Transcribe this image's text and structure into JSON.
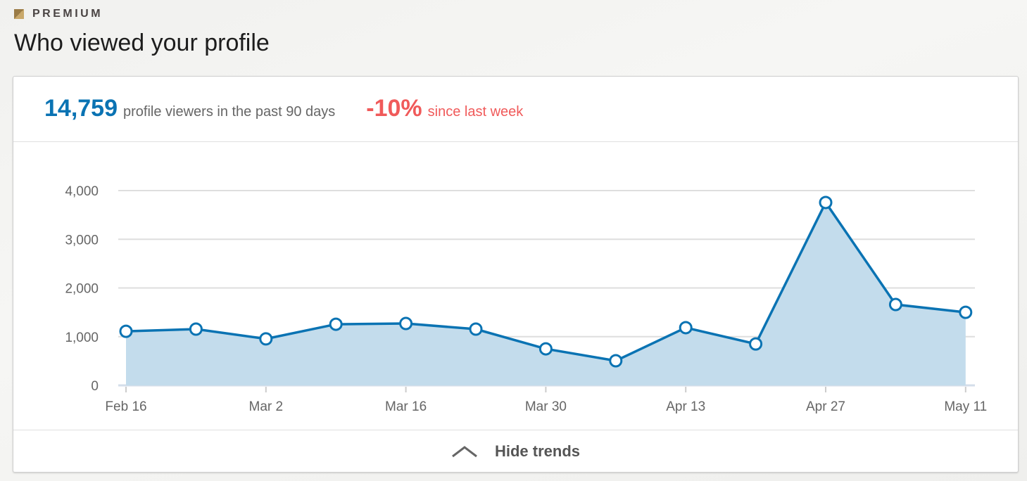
{
  "header": {
    "badge": "PREMIUM",
    "title": "Who viewed your profile"
  },
  "summary": {
    "count": "14,759",
    "count_label": "profile viewers in the past 90 days",
    "change": "-10%",
    "change_label": "since last week"
  },
  "footer": {
    "toggle_label": "Hide trends"
  },
  "colors": {
    "line": "#0a73b3",
    "fill": "#c3dcec",
    "negative": "#f05a5a"
  },
  "chart_data": {
    "type": "area",
    "x": [
      "Feb 16",
      "Feb 23",
      "Mar 2",
      "Mar 9",
      "Mar 16",
      "Mar 23",
      "Mar 30",
      "Apr 6",
      "Apr 13",
      "Apr 20",
      "Apr 27",
      "May 4",
      "May 11"
    ],
    "values": [
      1110,
      1155,
      955,
      1255,
      1270,
      1155,
      750,
      505,
      1185,
      850,
      3755,
      1660,
      1500
    ],
    "xticks": [
      "Feb 16",
      "Mar 2",
      "Mar 16",
      "Mar 30",
      "Apr 13",
      "Apr 27",
      "May 11"
    ],
    "yticks": [
      "0",
      "1,000",
      "2,000",
      "3,000",
      "4,000"
    ],
    "ylim": [
      0,
      4000
    ],
    "grid": true,
    "xlabel": "",
    "ylabel": "",
    "title": ""
  }
}
